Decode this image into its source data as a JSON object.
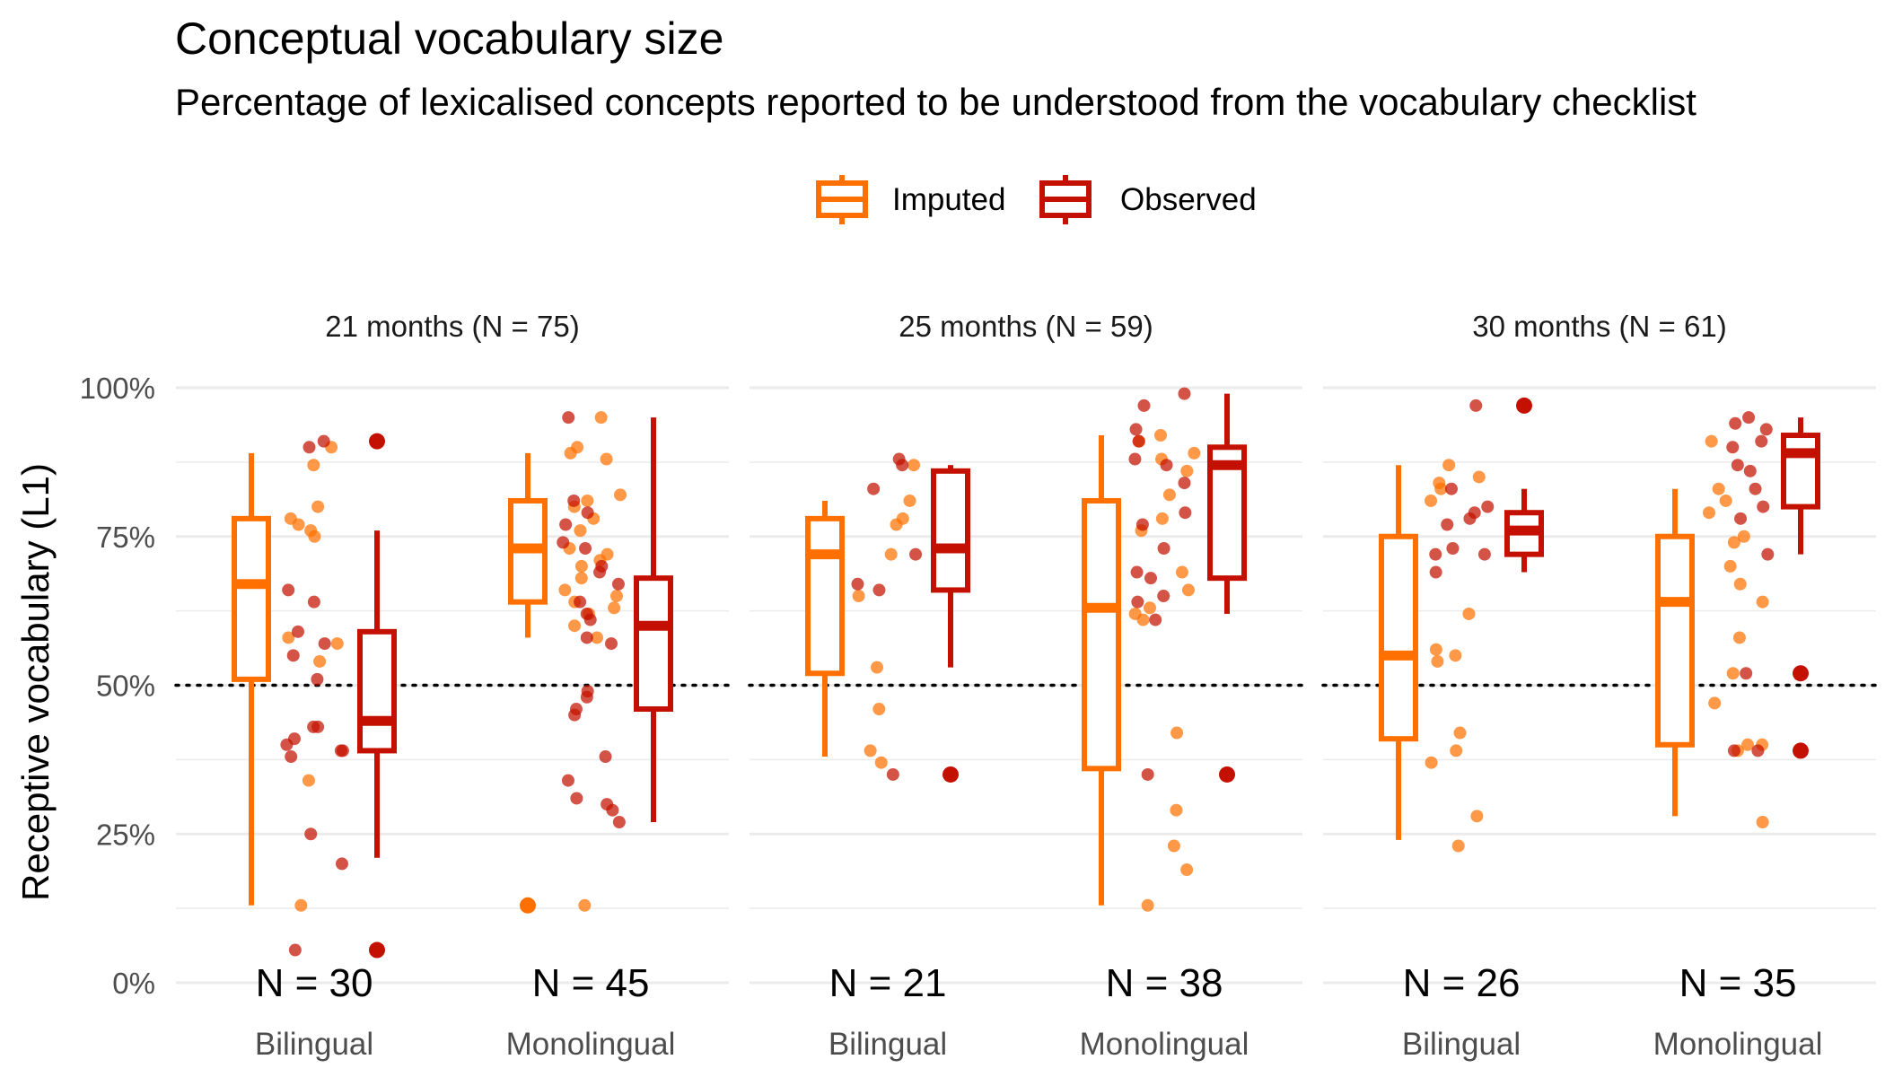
{
  "chart_data": {
    "type": "box",
    "title": "Conceptual vocabulary size",
    "subtitle": "Percentage of lexicalised concepts reported to be understood from the vocabulary checklist",
    "ylabel": "Receptive vocabulary (L1)",
    "xlabel": "",
    "ylim": [
      0,
      100
    ],
    "y_ticks": [
      "0%",
      "25%",
      "50%",
      "75%",
      "100%"
    ],
    "y_tick_values": [
      0,
      25,
      50,
      75,
      100
    ],
    "reference_line": 50,
    "grid": true,
    "legend_placement": "top",
    "series": [
      {
        "name": "Imputed",
        "color": "#FF7000"
      },
      {
        "name": "Observed",
        "color": "#C41000"
      }
    ],
    "panels": [
      {
        "label": "21 months (N = 75)",
        "groups": [
          {
            "category": "Bilingual",
            "n_label": "N = 30",
            "imputed": {
              "min": 13,
              "q1": 51,
              "median": 67,
              "q3": 78,
              "max": 89,
              "outliers": [],
              "points": [
                87,
                80,
                78,
                77,
                76,
                75,
                58,
                57,
                54,
                34,
                13,
                90
              ]
            },
            "observed": {
              "min": 21,
              "q1": 39,
              "median": 44,
              "q3": 59,
              "max": 76,
              "outliers": [
                91,
                5.5
              ],
              "points": [
                91,
                66,
                64,
                59,
                57,
                55,
                43,
                43,
                41,
                40,
                39,
                39,
                38,
                25,
                20,
                5.5,
                90,
                51
              ]
            }
          },
          {
            "category": "Monolingual",
            "n_label": "N = 45",
            "imputed": {
              "min": 58,
              "q1": 64,
              "median": 73,
              "q3": 81,
              "max": 89,
              "outliers": [
                13
              ],
              "points": [
                95,
                90,
                89,
                82,
                81,
                80,
                78,
                76,
                73,
                72,
                70,
                68,
                66,
                65,
                64,
                63,
                62,
                60,
                58,
                13,
                88,
                71
              ]
            },
            "observed": {
              "min": 27,
              "q1": 46,
              "median": 60,
              "q3": 68,
              "max": 95,
              "outliers": [],
              "points": [
                95,
                81,
                79,
                77,
                74,
                73,
                70,
                69,
                67,
                64,
                62,
                61,
                58,
                57,
                49,
                48,
                46,
                45,
                38,
                34,
                31,
                30,
                29,
                27
              ]
            }
          }
        ]
      },
      {
        "label": "25 months (N = 59)",
        "groups": [
          {
            "category": "Bilingual",
            "n_label": "N = 21",
            "imputed": {
              "min": 38,
              "q1": 52,
              "median": 72,
              "q3": 78,
              "max": 81,
              "outliers": [],
              "points": [
                87,
                81,
                78,
                77,
                72,
                65,
                53,
                46,
                39,
                37
              ]
            },
            "observed": {
              "min": 53,
              "q1": 66,
              "median": 73,
              "q3": 86,
              "max": 87,
              "outliers": [
                35
              ],
              "points": [
                88,
                87,
                83,
                72,
                67,
                66,
                35
              ]
            }
          },
          {
            "category": "Monolingual",
            "n_label": "N = 38",
            "imputed": {
              "min": 13,
              "q1": 36,
              "median": 63,
              "q3": 81,
              "max": 92,
              "outliers": [],
              "points": [
                92,
                91,
                89,
                88,
                86,
                82,
                78,
                76,
                69,
                66,
                63,
                62,
                61,
                42,
                29,
                23,
                19,
                13
              ]
            },
            "observed": {
              "min": 62,
              "q1": 68,
              "median": 87,
              "q3": 90,
              "max": 99,
              "outliers": [
                35
              ],
              "points": [
                99,
                97,
                93,
                91,
                88,
                87,
                84,
                79,
                77,
                73,
                69,
                68,
                65,
                64,
                61,
                35
              ]
            }
          }
        ]
      },
      {
        "label": "30 months (N = 61)",
        "groups": [
          {
            "category": "Bilingual",
            "n_label": "N = 26",
            "imputed": {
              "min": 24,
              "q1": 41,
              "median": 55,
              "q3": 75,
              "max": 87,
              "outliers": [],
              "points": [
                87,
                85,
                84,
                83,
                81,
                62,
                56,
                55,
                54,
                42,
                39,
                37,
                28,
                23
              ]
            },
            "observed": {
              "min": 69,
              "q1": 72,
              "median": 76,
              "q3": 79,
              "max": 83,
              "outliers": [
                97
              ],
              "points": [
                97,
                83,
                80,
                79,
                78,
                77,
                73,
                72,
                72,
                69
              ]
            }
          },
          {
            "category": "Monolingual",
            "n_label": "N = 35",
            "imputed": {
              "min": 28,
              "q1": 40,
              "median": 64,
              "q3": 75,
              "max": 83,
              "outliers": [],
              "points": [
                91,
                83,
                81,
                79,
                75,
                74,
                70,
                67,
                64,
                58,
                52,
                47,
                40,
                40,
                39,
                27
              ]
            },
            "observed": {
              "min": 72,
              "q1": 80,
              "median": 89,
              "q3": 92,
              "max": 95,
              "outliers": [
                52,
                39
              ],
              "points": [
                95,
                94,
                93,
                91,
                90,
                87,
                86,
                83,
                80,
                78,
                72,
                52,
                39,
                39
              ]
            }
          }
        ]
      }
    ]
  }
}
